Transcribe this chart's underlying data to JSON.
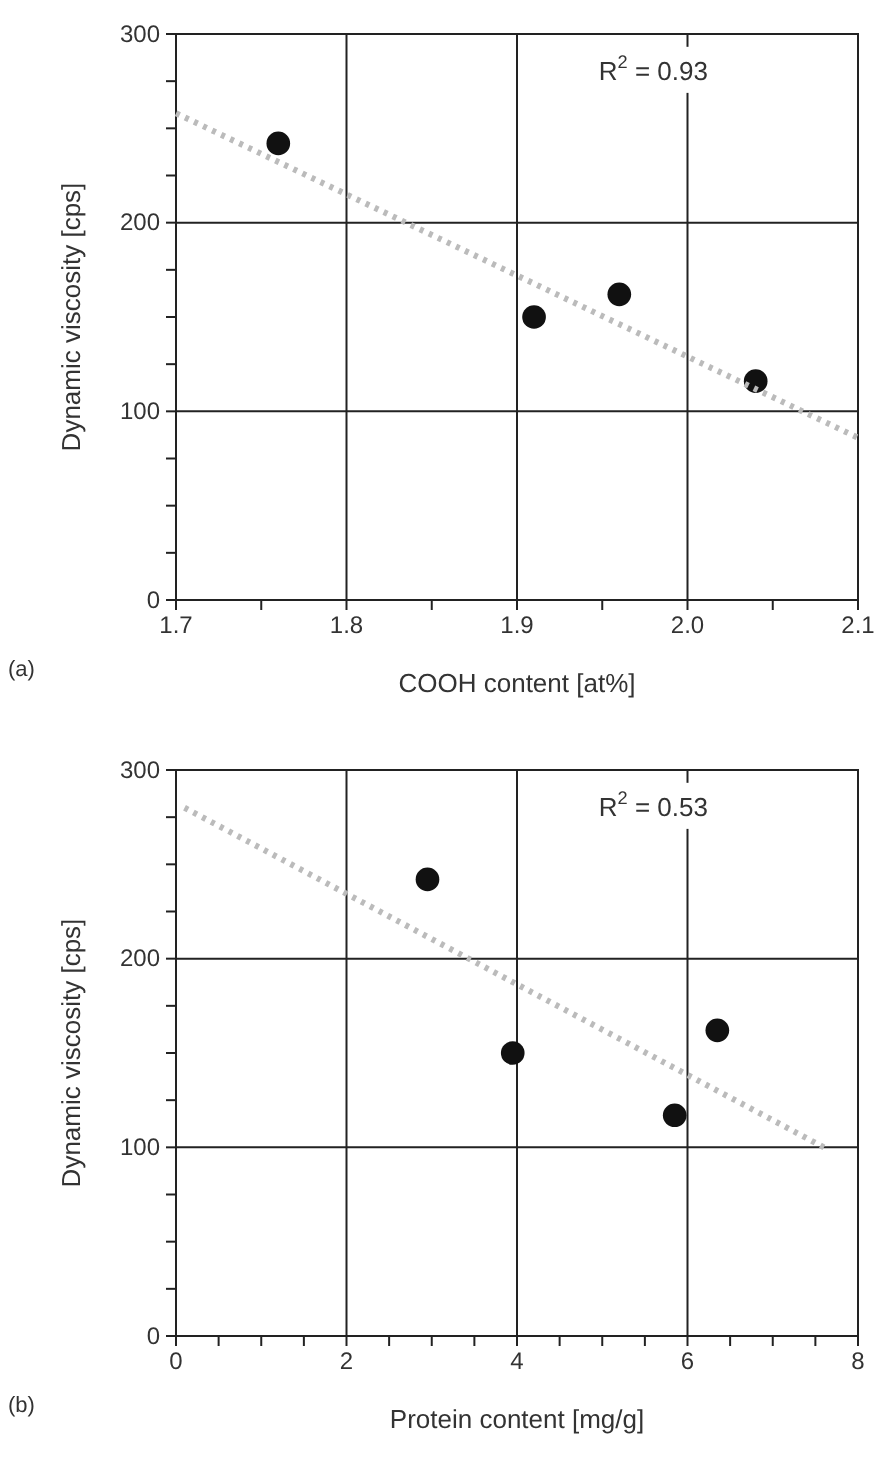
{
  "chart_data": [
    {
      "type": "scatter",
      "xlabel": "COOH content [at%]",
      "ylabel": "Dynamic viscosity [cps]",
      "annotations": [
        "(a)",
        "R$^{2}$ = 0.93"
      ],
      "xlim": [
        1.7,
        2.1
      ],
      "xticks": [
        {
          "value": 1.7,
          "label": "1.7"
        },
        {
          "value": 1.75,
          "label": null
        },
        {
          "value": 1.8,
          "label": "1.8"
        },
        {
          "value": 1.85,
          "label": null
        },
        {
          "value": 1.9,
          "label": "1.9"
        },
        {
          "value": 1.95,
          "label": null
        },
        {
          "value": 2.0,
          "label": "2.0"
        },
        {
          "value": 2.05,
          "label": null
        },
        {
          "value": 2.1,
          "label": "2.1"
        }
      ],
      "ylim": [
        0,
        300
      ],
      "yticks": [
        0,
        {
          "value": 25,
          "label": null
        },
        {
          "value": 50,
          "label": null
        },
        {
          "value": 75,
          "label": null
        },
        100,
        {
          "value": 125,
          "label": null
        },
        {
          "value": 150,
          "label": null
        },
        {
          "value": 175,
          "label": null
        },
        200,
        {
          "value": 225,
          "label": null
        },
        {
          "value": 250,
          "label": null
        },
        {
          "value": 275,
          "label": null
        },
        300
      ],
      "grid": true,
      "series": [
        {
          "color": "#111111",
          "marker": "circle",
          "x": [
            1.76,
            1.91,
            1.96,
            2.04
          ],
          "values": [
            242,
            150,
            162,
            116
          ]
        },
        {
          "type": "line",
          "color": "#bbbbbb",
          "line_style": "dotted",
          "marker": "none",
          "x": [
            1.7,
            2.1
          ],
          "values": [
            258,
            86
          ]
        }
      ]
    },
    {
      "type": "scatter",
      "xlabel": "Protein content [mg/g]",
      "ylabel": "Dynamic viscosity [cps]",
      "annotations": [
        "(b)",
        "R$^{2}$ = 0.53"
      ],
      "xlim": [
        0,
        8
      ],
      "xticks": [
        0,
        {
          "value": 0.5,
          "label": null
        },
        {
          "value": 1,
          "label": null
        },
        {
          "value": 1.5,
          "label": null
        },
        2,
        {
          "value": 2.5,
          "label": null
        },
        {
          "value": 3,
          "label": null
        },
        {
          "value": 3.5,
          "label": null
        },
        4,
        {
          "value": 4.5,
          "label": null
        },
        {
          "value": 5,
          "label": null
        },
        {
          "value": 5.5,
          "label": null
        },
        6,
        {
          "value": 6.5,
          "label": null
        },
        {
          "value": 7,
          "label": null
        },
        {
          "value": 7.5,
          "label": null
        },
        8
      ],
      "ylim": [
        0,
        300
      ],
      "yticks": [
        0,
        {
          "value": 25,
          "label": null
        },
        {
          "value": 50,
          "label": null
        },
        {
          "value": 75,
          "label": null
        },
        100,
        {
          "value": 125,
          "label": null
        },
        {
          "value": 150,
          "label": null
        },
        {
          "value": 175,
          "label": null
        },
        200,
        {
          "value": 225,
          "label": null
        },
        {
          "value": 250,
          "label": null
        },
        {
          "value": 275,
          "label": null
        },
        300
      ],
      "grid": true,
      "series": [
        {
          "color": "#111111",
          "marker": "circle",
          "x": [
            2.95,
            3.95,
            5.85,
            6.35
          ],
          "values": [
            242,
            150,
            117,
            162
          ]
        },
        {
          "type": "line",
          "color": "#bbbbbb",
          "line_style": "dotted",
          "marker": "none",
          "x": [
            0.1,
            7.6
          ],
          "values": [
            280,
            100
          ]
        }
      ]
    }
  ]
}
